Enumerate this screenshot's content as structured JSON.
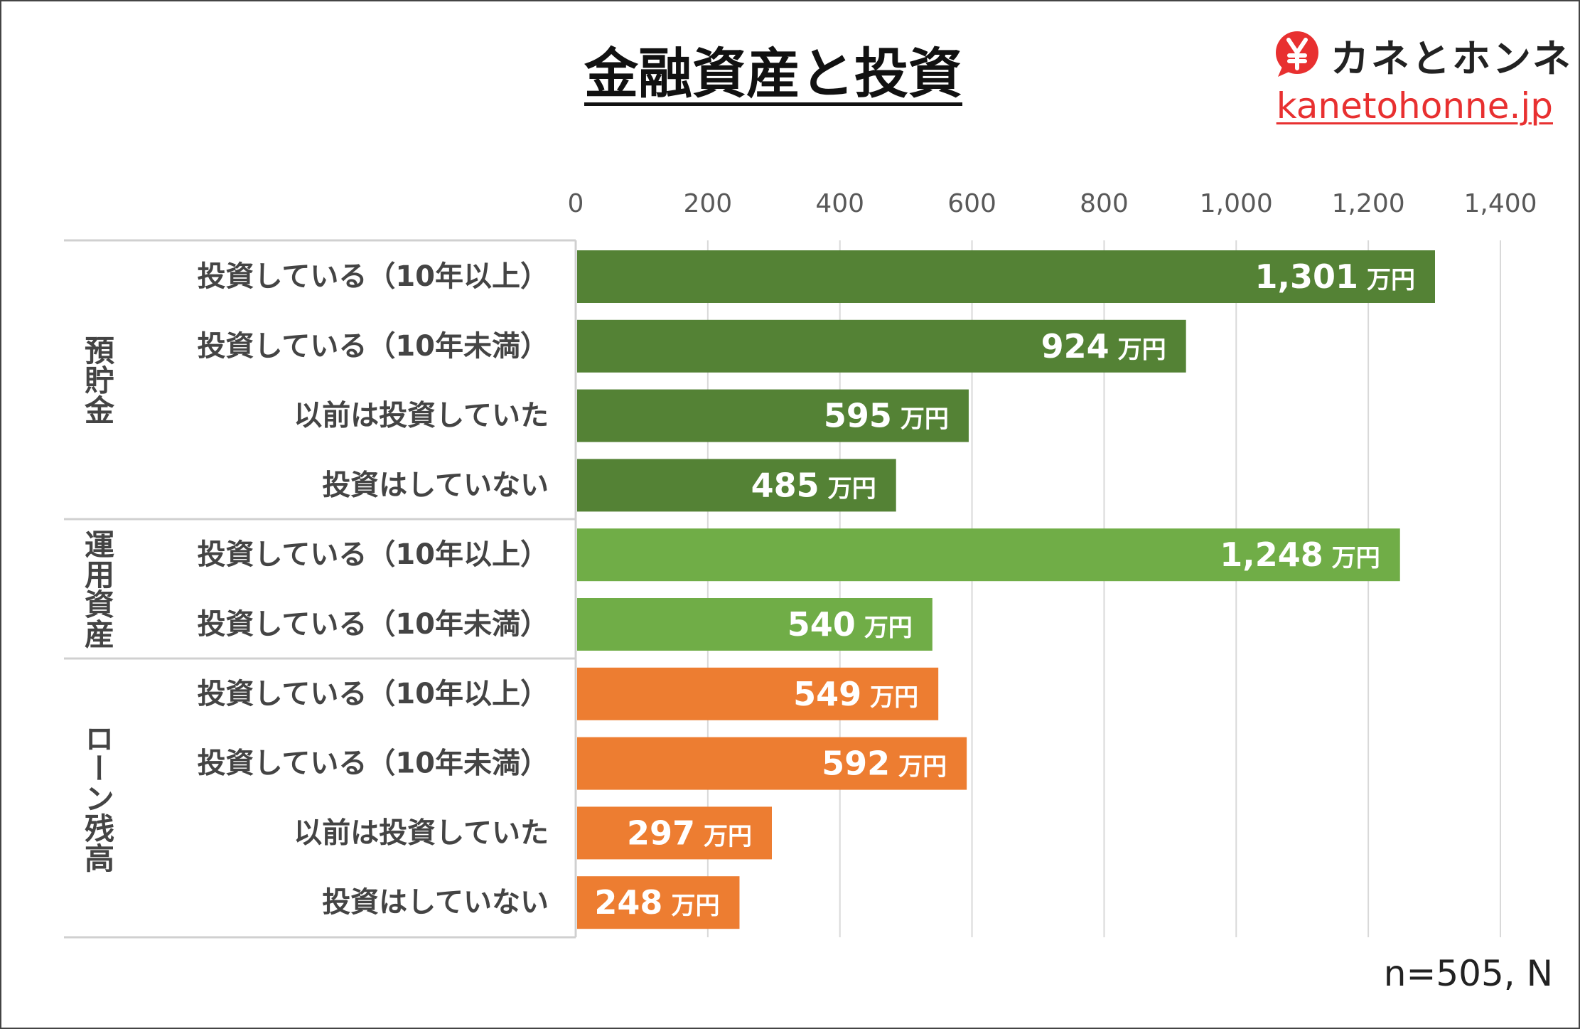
{
  "title": "金融資産と投資",
  "brand": {
    "name": "カネとホンネ",
    "url": "kanetohonne.jp",
    "icon": "yen-icon",
    "color": "#e83030"
  },
  "footnote": "n=505, N",
  "chart_data": {
    "type": "bar",
    "orientation": "horizontal",
    "xlim": [
      0,
      1400
    ],
    "ticks": [
      0,
      200,
      400,
      600,
      800,
      1000,
      1200,
      1400
    ],
    "tick_labels": [
      "0",
      "200",
      "400",
      "600",
      "800",
      "1,000",
      "1,200",
      "1,400"
    ],
    "unit": "万円",
    "groups": [
      {
        "name": "預貯金",
        "color": "#548235",
        "bars": [
          {
            "label": "投資している（10年以上）",
            "value": 1301,
            "value_label": "1,301"
          },
          {
            "label": "投資している（10年未満）",
            "value": 924,
            "value_label": "924"
          },
          {
            "label": "以前は投資していた",
            "value": 595,
            "value_label": "595"
          },
          {
            "label": "投資はしていない",
            "value": 485,
            "value_label": "485"
          }
        ]
      },
      {
        "name": "運用資産",
        "color": "#70ad47",
        "bars": [
          {
            "label": "投資している（10年以上）",
            "value": 1248,
            "value_label": "1,248"
          },
          {
            "label": "投資している（10年未満）",
            "value": 540,
            "value_label": "540"
          }
        ]
      },
      {
        "name": "ローン残高",
        "color": "#ed7d31",
        "bars": [
          {
            "label": "投資している（10年以上）",
            "value": 549,
            "value_label": "549"
          },
          {
            "label": "投資している（10年未満）",
            "value": 592,
            "value_label": "592"
          },
          {
            "label": "以前は投資していた",
            "value": 297,
            "value_label": "297"
          },
          {
            "label": "投資はしていない",
            "value": 248,
            "value_label": "248"
          }
        ]
      }
    ]
  }
}
